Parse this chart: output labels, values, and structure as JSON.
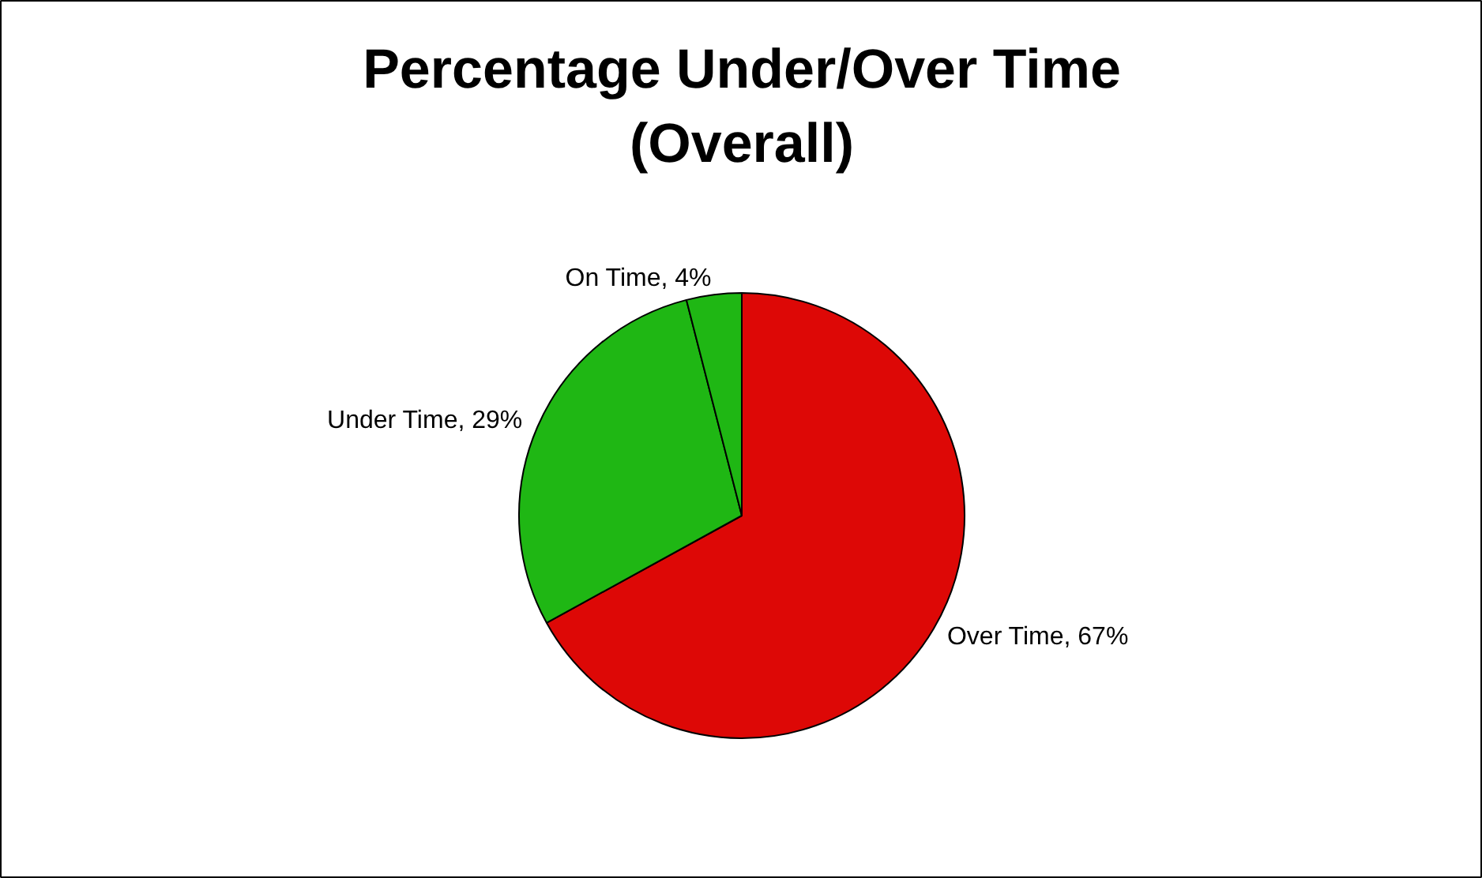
{
  "chart_data": {
    "type": "pie",
    "title": "Percentage Under/Over Time\n(Overall)",
    "categories": [
      "Over Time",
      "Under Time",
      "On Time"
    ],
    "values": [
      67,
      29,
      4
    ],
    "colors": [
      "#dd0806",
      "#1fb714",
      "#1fb714"
    ],
    "value_labels": [
      "67%",
      "29%",
      "4%"
    ]
  }
}
